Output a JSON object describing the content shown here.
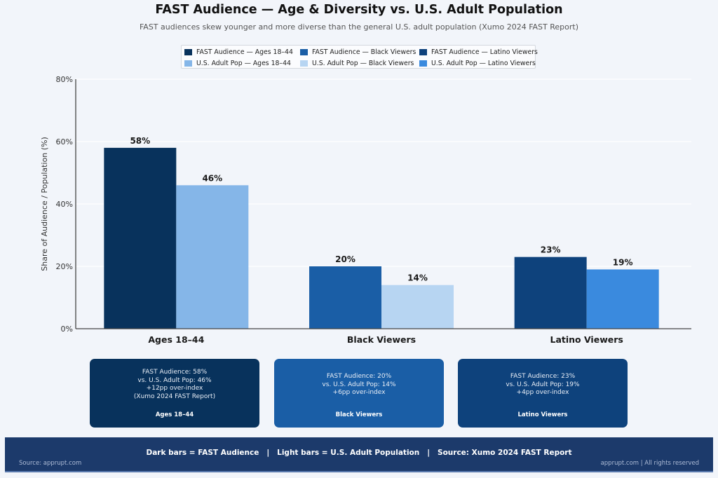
{
  "header": {
    "title": "FAST Audience — Age & Diversity vs. U.S. Adult Population",
    "subtitle": "FAST audiences skew younger and more diverse than the general U.S. adult population (Xumo 2024 FAST Report)"
  },
  "legend": [
    {
      "label": "FAST Audience — Ages 18–44",
      "color": "#08325c"
    },
    {
      "label": "FAST Audience — Black Viewers",
      "color": "#1a5ea6"
    },
    {
      "label": "FAST Audience — Latino Viewers",
      "color": "#0e427c"
    },
    {
      "label": "U.S. Adult Pop — Ages 18–44",
      "color": "#85b6e8"
    },
    {
      "label": "U.S. Adult Pop — Black Viewers",
      "color": "#b7d5f2"
    },
    {
      "label": "U.S. Adult Pop — Latino Viewers",
      "color": "#3a8ade"
    }
  ],
  "chart_data": {
    "type": "bar",
    "title": "FAST Audience — Age & Diversity vs. U.S. Adult Population",
    "subtitle": "FAST audiences skew younger and more diverse than the general U.S. adult population (Xumo 2024 FAST Report)",
    "categories": [
      "Ages 18–44",
      "Black Viewers",
      "Latino Viewers"
    ],
    "series": [
      {
        "name": "FAST Audience",
        "values": [
          58,
          20,
          23
        ],
        "colors": [
          "#08325c",
          "#1a5ea6",
          "#0e427c"
        ]
      },
      {
        "name": "U.S. Adult Pop",
        "values": [
          46,
          14,
          19
        ],
        "colors": [
          "#85b6e8",
          "#b7d5f2",
          "#3a8ade"
        ]
      }
    ],
    "value_labels": [
      [
        "58%",
        "20%",
        "23%"
      ],
      [
        "46%",
        "14%",
        "19%"
      ]
    ],
    "xlabel": "",
    "ylabel": "Share of Audience / Population (%)",
    "ylim": [
      0,
      80
    ],
    "yticks": [
      0,
      20,
      40,
      60,
      80
    ],
    "ytick_labels": [
      "0%",
      "20%",
      "40%",
      "60%",
      "80%"
    ],
    "grid": true,
    "legend_position": "top-center"
  },
  "cards": [
    {
      "lines": [
        "FAST Audience: 58%",
        "vs. U.S. Adult Pop: 46%",
        "+12pp over-index",
        "(Xumo 2024 FAST Report)"
      ],
      "title": "Ages 18–44",
      "color": "#08325c"
    },
    {
      "lines": [
        "FAST Audience: 20%",
        "vs. U.S. Adult Pop: 14%",
        "+6pp over-index"
      ],
      "title": "Black Viewers",
      "color": "#1a5ea6"
    },
    {
      "lines": [
        "FAST Audience: 23%",
        "vs. U.S. Adult Pop: 19%",
        "+4pp over-index"
      ],
      "title": "Latino Viewers",
      "color": "#0e427c"
    }
  ],
  "footer": {
    "main": "Dark bars = FAST Audience   |   Light bars = U.S. Adult Population   |   Source: Xumo 2024 FAST Report",
    "left": "Source: apprupt.com",
    "right": "apprupt.com  |  All rights reserved"
  }
}
